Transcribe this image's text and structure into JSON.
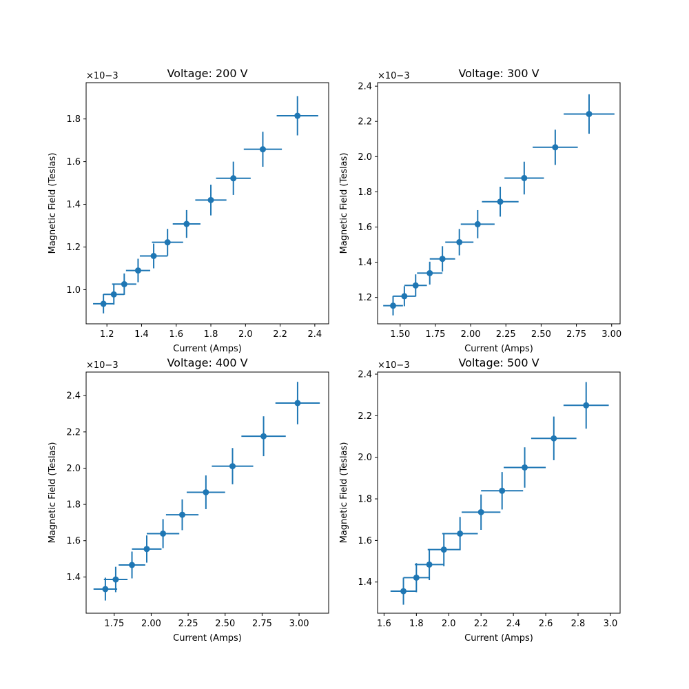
{
  "chart_data": [
    {
      "type": "scatter",
      "title": "Voltage: 200 V",
      "xlabel": "Current (Amps)",
      "ylabel": "Magnetic Field (Teslas)",
      "y_multiplier": "×10−3",
      "xlim": [
        1.08,
        2.48
      ],
      "ylim": [
        0.84,
        1.97
      ],
      "xticks": [
        "1.2",
        "1.4",
        "1.6",
        "1.8",
        "2.0",
        "2.2",
        "2.4"
      ],
      "yticks": [
        "1.0",
        "1.2",
        "1.4",
        "1.6",
        "1.8"
      ],
      "color": "#1f77b4",
      "series": [
        {
          "x": [
            1.18,
            1.24,
            1.3,
            1.38,
            1.47,
            1.55,
            1.66,
            1.8,
            1.93,
            2.1,
            2.3
          ],
          "y": [
            0.934,
            0.978,
            1.026,
            1.09,
            1.158,
            1.222,
            1.308,
            1.42,
            1.522,
            1.658,
            1.815
          ],
          "xerr": [
            0.06,
            0.06,
            0.07,
            0.07,
            0.08,
            0.09,
            0.08,
            0.09,
            0.1,
            0.11,
            0.12
          ],
          "yerr": [
            0.045,
            0.048,
            0.05,
            0.055,
            0.058,
            0.063,
            0.065,
            0.072,
            0.078,
            0.082,
            0.092
          ]
        }
      ]
    },
    {
      "type": "scatter",
      "title": "Voltage: 300 V",
      "xlabel": "Current (Amps)",
      "ylabel": "Magnetic Field (Teslas)",
      "y_multiplier": "×10−3",
      "xlim": [
        1.34,
        3.06
      ],
      "ylim": [
        1.05,
        2.42
      ],
      "xticks": [
        "1.50",
        "1.75",
        "2.00",
        "2.25",
        "2.50",
        "2.75",
        "3.00"
      ],
      "yticks": [
        "1.2",
        "1.4",
        "1.6",
        "1.8",
        "2.0",
        "2.2",
        "2.4"
      ],
      "color": "#1f77b4",
      "series": [
        {
          "x": [
            1.45,
            1.53,
            1.61,
            1.71,
            1.8,
            1.92,
            2.05,
            2.21,
            2.38,
            2.6,
            2.84
          ],
          "y": [
            1.153,
            1.207,
            1.268,
            1.338,
            1.419,
            1.514,
            1.616,
            1.744,
            1.878,
            2.053,
            2.242
          ],
          "xerr": [
            0.07,
            0.08,
            0.08,
            0.09,
            0.09,
            0.1,
            0.12,
            0.13,
            0.14,
            0.16,
            0.18
          ],
          "yerr": [
            0.055,
            0.057,
            0.063,
            0.065,
            0.072,
            0.075,
            0.08,
            0.085,
            0.093,
            0.1,
            0.112
          ]
        }
      ]
    },
    {
      "type": "scatter",
      "title": "Voltage: 400 V",
      "xlabel": "Current (Amps)",
      "ylabel": "Magnetic Field (Teslas)",
      "y_multiplier": "×10−3",
      "xlim": [
        1.56,
        3.2
      ],
      "ylim": [
        1.2,
        2.53
      ],
      "xticks": [
        "1.75",
        "2.00",
        "2.25",
        "2.50",
        "2.75",
        "3.00"
      ],
      "yticks": [
        "1.4",
        "1.6",
        "1.8",
        "2.0",
        "2.2",
        "2.4"
      ],
      "color": "#1f77b4",
      "series": [
        {
          "x": [
            1.69,
            1.76,
            1.87,
            1.97,
            2.08,
            2.21,
            2.37,
            2.55,
            2.76,
            2.99
          ],
          "y": [
            1.333,
            1.386,
            1.466,
            1.554,
            1.639,
            1.743,
            1.867,
            2.011,
            2.176,
            2.359
          ],
          "xerr": [
            0.08,
            0.08,
            0.09,
            0.1,
            0.11,
            0.11,
            0.13,
            0.14,
            0.15,
            0.15
          ],
          "yerr": [
            0.063,
            0.07,
            0.074,
            0.075,
            0.08,
            0.085,
            0.093,
            0.1,
            0.11,
            0.117
          ]
        }
      ]
    },
    {
      "type": "scatter",
      "title": "Voltage: 500 V",
      "xlabel": "Current (Amps)",
      "ylabel": "Magnetic Field (Teslas)",
      "y_multiplier": "×10−3",
      "xlim": [
        1.56,
        3.06
      ],
      "ylim": [
        1.25,
        2.41
      ],
      "xticks": [
        "1.6",
        "1.8",
        "2.0",
        "2.2",
        "2.4",
        "2.6",
        "2.8",
        "3.0"
      ],
      "yticks": [
        "1.4",
        "1.6",
        "1.8",
        "2.0",
        "2.2",
        "2.4"
      ],
      "color": "#1f77b4",
      "series": [
        {
          "x": [
            1.72,
            1.8,
            1.88,
            1.97,
            2.07,
            2.2,
            2.33,
            2.47,
            2.65,
            2.85
          ],
          "y": [
            1.356,
            1.421,
            1.484,
            1.556,
            1.633,
            1.736,
            1.839,
            1.951,
            2.091,
            2.25
          ],
          "xerr": [
            0.08,
            0.08,
            0.09,
            0.1,
            0.11,
            0.12,
            0.13,
            0.13,
            0.14,
            0.14
          ],
          "yerr": [
            0.065,
            0.07,
            0.075,
            0.08,
            0.08,
            0.085,
            0.09,
            0.097,
            0.105,
            0.112
          ]
        }
      ]
    }
  ]
}
